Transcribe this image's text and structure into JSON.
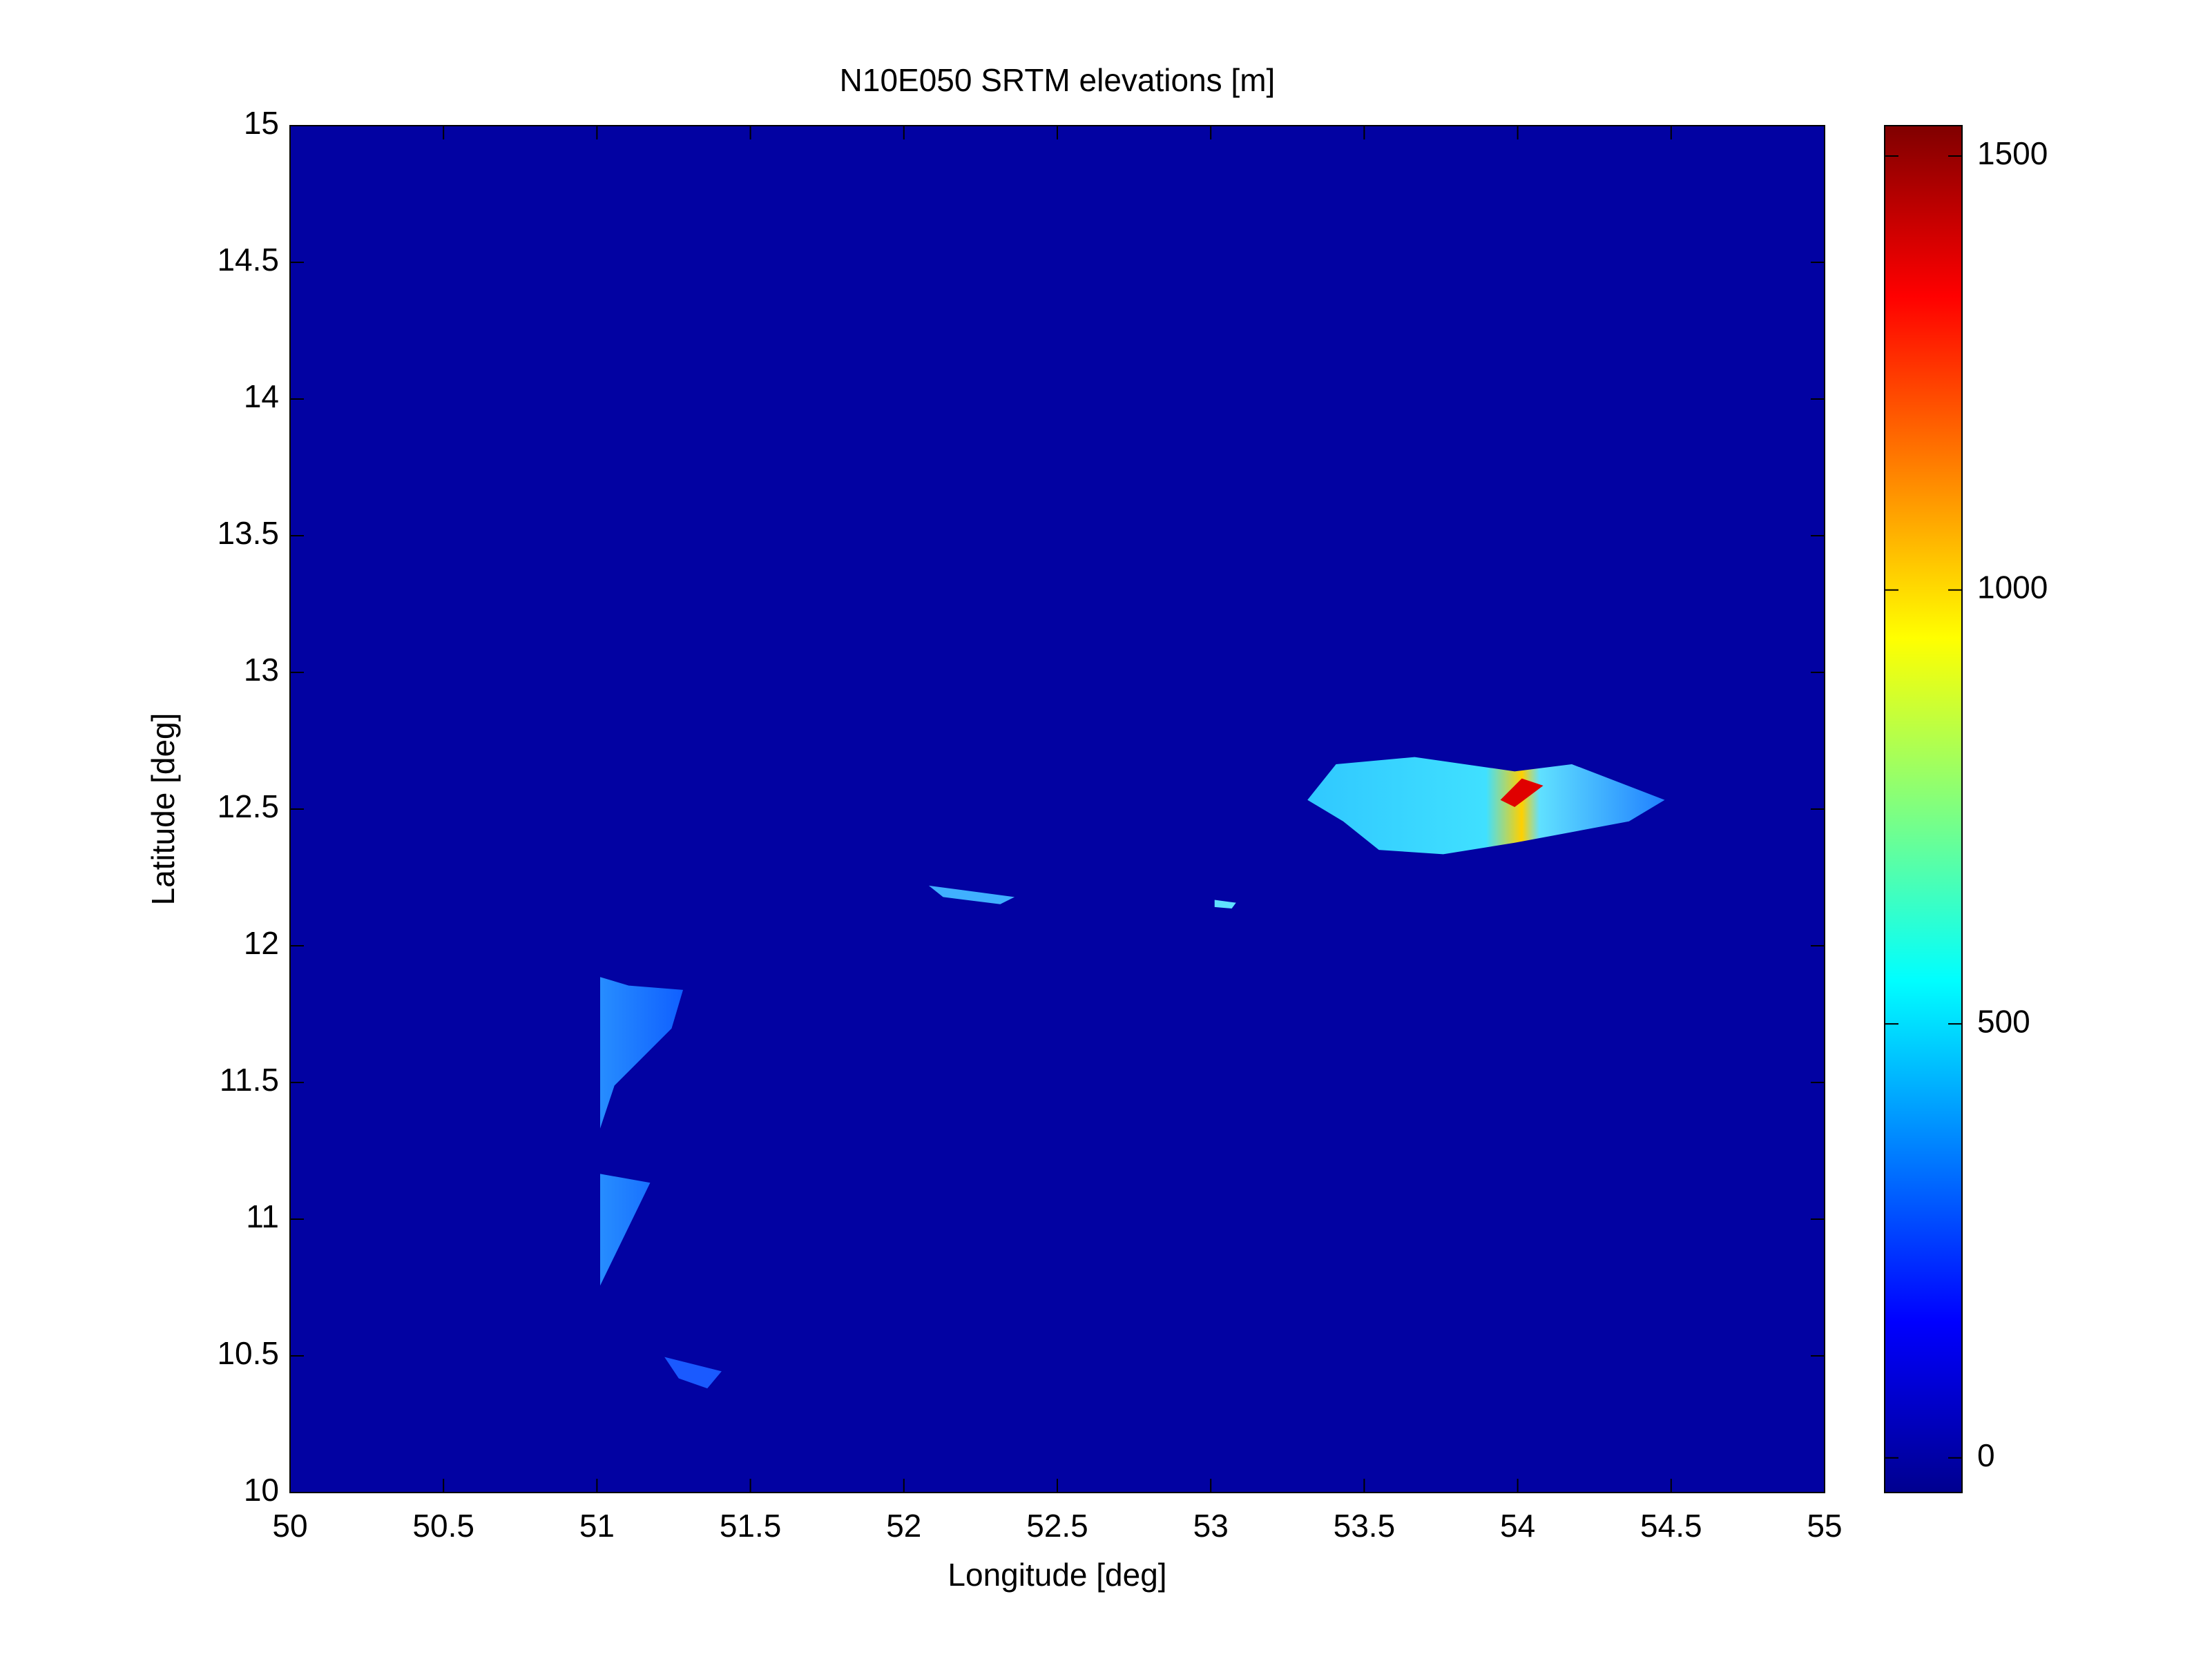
{
  "chart_data": {
    "type": "heatmap",
    "title": "N10E050 SRTM elevations [m]",
    "xlabel": "Longitude [deg]",
    "ylabel": "Latitude [deg]",
    "xlim": [
      50,
      55
    ],
    "xticks": [
      50,
      50.5,
      51,
      51.5,
      52,
      52.5,
      53,
      53.5,
      54,
      54.5,
      55
    ],
    "ylim": [
      10,
      15
    ],
    "yticks": [
      10,
      10.5,
      11,
      11.5,
      12,
      12.5,
      13,
      13.5,
      14,
      14.5,
      15
    ],
    "colorbar": {
      "colormap": "jet",
      "clim": [
        -40,
        1535
      ],
      "ticks": [
        0,
        500,
        1000,
        1500
      ]
    }
  }
}
